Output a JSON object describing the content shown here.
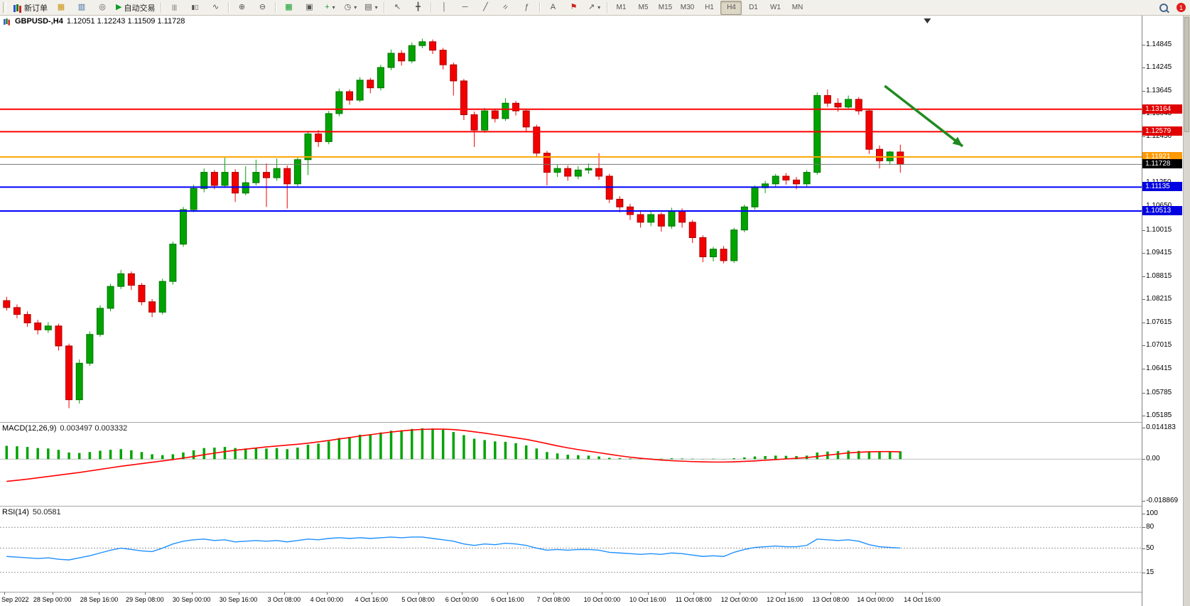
{
  "toolbar": {
    "new_order_label": "新订单",
    "auto_trading_label": "自动交易",
    "timeframes": [
      "M1",
      "M5",
      "M15",
      "M30",
      "H1",
      "H4",
      "D1",
      "W1",
      "MN"
    ],
    "active_timeframe": "H4",
    "notification_badge": "1"
  },
  "icons": {
    "new-chart": "▦",
    "profiles": "▥",
    "signals": "◎",
    "auto-play": "▶",
    "bars": "|||",
    "candles": "▮▯",
    "linechart": "∿",
    "zoom-in": "⊕",
    "zoom-out": "⊖",
    "tile": "▦",
    "cascade": "▣",
    "indicators": "+",
    "periods": "◷",
    "templates": "▤",
    "cursor": "↖",
    "crosshair": "╋",
    "vline": "│",
    "hline": "─",
    "trend": "╱",
    "channel": "=",
    "fibo": "ƒ",
    "text": "A",
    "label": "⚑",
    "arrows": "↗",
    "caret": "▾"
  },
  "colors": {
    "bull": "#00a400",
    "bull_edge": "#007200",
    "bear": "#f40000",
    "bear_edge": "#a80000",
    "macd_hist": "#00a400",
    "macd_signal": "#ff0000",
    "rsi_line": "#1e90ff",
    "level_red": "#ff0000",
    "level_orange": "#ffa500",
    "level_blue": "#0000ff"
  },
  "chart_data": {
    "main": {
      "type": "candlestick",
      "title_symbol": "GBPUSD-,H4",
      "title_ohlc": "1.12051 1.12243 1.11509 1.11728",
      "y_range": [
        1.0502,
        1.156
      ],
      "price_axis_labels": [
        "1.14845",
        "1.14245",
        "1.13645",
        "1.13045",
        "1.12450",
        "1.11850",
        "1.11250",
        "1.10650",
        "1.10015",
        "1.09415",
        "1.08815",
        "1.08215",
        "1.07615",
        "1.07015",
        "1.06415",
        "1.05785",
        "1.05185"
      ],
      "hlines": [
        {
          "price": 1.13164,
          "label": "1.13164",
          "color": "#ff0000",
          "bg": "#e00000",
          "width": 2
        },
        {
          "price": 1.12579,
          "label": "1.12579",
          "color": "#ff0000",
          "bg": "#e00000",
          "width": 2
        },
        {
          "price": 1.11921,
          "label": "1.11921",
          "color": "#ffa500",
          "bg": "#ff9900",
          "width": 2
        },
        {
          "price": 1.11728,
          "label": "1.11728",
          "color": "#777777",
          "bg": "#000000",
          "width": 1
        },
        {
          "price": 1.11135,
          "label": "1.11135",
          "color": "#0000ff",
          "bg": "#0000e0",
          "width": 2
        },
        {
          "price": 1.10513,
          "label": "1.10513",
          "color": "#0000ff",
          "bg": "#0000e0",
          "width": 2
        }
      ],
      "arrow": {
        "from_idx": 84.5,
        "from_price": 1.1377,
        "to_idx": 92,
        "to_price": 1.122,
        "color": "#1f8a1f"
      },
      "shift_marker_idx": 88.6,
      "candles": [
        [
          1.0818,
          1.0828,
          1.0792,
          1.08
        ],
        [
          1.08,
          1.0808,
          1.0772,
          1.0782
        ],
        [
          1.0782,
          1.079,
          1.075,
          1.076
        ],
        [
          1.076,
          1.0768,
          1.073,
          1.0742
        ],
        [
          1.0742,
          1.0762,
          1.0734,
          1.0752
        ],
        [
          1.0752,
          1.0758,
          1.0688,
          1.07
        ],
        [
          1.07,
          1.0706,
          1.0538,
          1.056
        ],
        [
          1.056,
          1.0665,
          1.055,
          1.0655
        ],
        [
          1.0655,
          1.0738,
          1.0648,
          1.073
        ],
        [
          1.073,
          1.0806,
          1.0724,
          1.0798
        ],
        [
          1.0798,
          1.0862,
          1.079,
          1.0855
        ],
        [
          1.0855,
          1.0898,
          1.0848,
          1.0888
        ],
        [
          1.0888,
          1.0894,
          1.0846,
          1.0858
        ],
        [
          1.0858,
          1.0864,
          1.0806,
          1.0815
        ],
        [
          1.0815,
          1.0822,
          1.0775,
          1.0788
        ],
        [
          1.0788,
          1.0875,
          1.0782,
          1.0868
        ],
        [
          1.0868,
          1.0972,
          1.086,
          1.0965
        ],
        [
          1.0965,
          1.1062,
          1.0958,
          1.1055
        ],
        [
          1.1055,
          1.112,
          1.1048,
          1.111
        ],
        [
          1.111,
          1.1162,
          1.11,
          1.1152
        ],
        [
          1.1152,
          1.1158,
          1.1108,
          1.1118
        ],
        [
          1.1118,
          1.119,
          1.1112,
          1.1152
        ],
        [
          1.1152,
          1.116,
          1.1075,
          1.1098
        ],
        [
          1.1098,
          1.1168,
          1.1092,
          1.1125
        ],
        [
          1.1125,
          1.1185,
          1.1118,
          1.1152
        ],
        [
          1.1152,
          1.1175,
          1.1062,
          1.1138
        ],
        [
          1.1138,
          1.1188,
          1.113,
          1.1162
        ],
        [
          1.1162,
          1.117,
          1.1058,
          1.1122
        ],
        [
          1.1122,
          1.1192,
          1.1116,
          1.1185
        ],
        [
          1.1185,
          1.126,
          1.1145,
          1.1252
        ],
        [
          1.1252,
          1.1262,
          1.1218,
          1.1232
        ],
        [
          1.1232,
          1.1312,
          1.1225,
          1.1305
        ],
        [
          1.1305,
          1.137,
          1.1298,
          1.1362
        ],
        [
          1.1362,
          1.1368,
          1.1328,
          1.134
        ],
        [
          1.134,
          1.14,
          1.1335,
          1.1392
        ],
        [
          1.1392,
          1.1398,
          1.1358,
          1.1372
        ],
        [
          1.1372,
          1.1432,
          1.1365,
          1.1425
        ],
        [
          1.1425,
          1.1472,
          1.1418,
          1.1462
        ],
        [
          1.1462,
          1.147,
          1.143,
          1.1442
        ],
        [
          1.1442,
          1.149,
          1.1436,
          1.1482
        ],
        [
          1.1482,
          1.15,
          1.1475,
          1.1492
        ],
        [
          1.1492,
          1.1498,
          1.146,
          1.147
        ],
        [
          1.147,
          1.1476,
          1.142,
          1.1432
        ],
        [
          1.1432,
          1.1438,
          1.1352,
          1.139
        ],
        [
          1.139,
          1.1395,
          1.1288,
          1.1302
        ],
        [
          1.1302,
          1.131,
          1.1218,
          1.1262
        ],
        [
          1.1262,
          1.132,
          1.1255,
          1.1312
        ],
        [
          1.1312,
          1.1318,
          1.1282,
          1.1292
        ],
        [
          1.1292,
          1.1345,
          1.1286,
          1.1332
        ],
        [
          1.1332,
          1.1338,
          1.13,
          1.1312
        ],
        [
          1.1312,
          1.1318,
          1.1256,
          1.127
        ],
        [
          1.127,
          1.1276,
          1.119,
          1.1202
        ],
        [
          1.1202,
          1.1208,
          1.1118,
          1.1152
        ],
        [
          1.1152,
          1.1172,
          1.114,
          1.1162
        ],
        [
          1.1162,
          1.117,
          1.113,
          1.1142
        ],
        [
          1.1142,
          1.1168,
          1.1134,
          1.1158
        ],
        [
          1.1158,
          1.1175,
          1.1148,
          1.1162
        ],
        [
          1.1162,
          1.1202,
          1.1132,
          1.1142
        ],
        [
          1.1142,
          1.1148,
          1.1072,
          1.1082
        ],
        [
          1.1082,
          1.109,
          1.1048,
          1.1062
        ],
        [
          1.1062,
          1.107,
          1.1028,
          1.1042
        ],
        [
          1.1042,
          1.105,
          1.1008,
          1.1022
        ],
        [
          1.1022,
          1.1052,
          1.1012,
          1.1042
        ],
        [
          1.1042,
          1.1048,
          1.0998,
          1.1012
        ],
        [
          1.1012,
          1.106,
          1.1005,
          1.1052
        ],
        [
          1.1052,
          1.1058,
          1.1008,
          1.1022
        ],
        [
          1.1022,
          1.1028,
          1.0968,
          1.0982
        ],
        [
          1.0982,
          1.0988,
          1.0918,
          1.0932
        ],
        [
          1.0932,
          1.0958,
          1.092,
          1.0952
        ],
        [
          1.0952,
          1.096,
          1.0915,
          1.0922
        ],
        [
          1.0922,
          1.1008,
          1.0916,
          1.1002
        ],
        [
          1.1002,
          1.1068,
          1.0996,
          1.1062
        ],
        [
          1.1062,
          1.1118,
          1.1055,
          1.1112
        ],
        [
          1.1112,
          1.113,
          1.1098,
          1.1122
        ],
        [
          1.1122,
          1.1148,
          1.1112,
          1.1142
        ],
        [
          1.1142,
          1.115,
          1.112,
          1.1132
        ],
        [
          1.1132,
          1.114,
          1.1108,
          1.1122
        ],
        [
          1.1122,
          1.1158,
          1.1115,
          1.1152
        ],
        [
          1.1152,
          1.136,
          1.1146,
          1.1352
        ],
        [
          1.1352,
          1.1368,
          1.1322,
          1.1332
        ],
        [
          1.1332,
          1.1345,
          1.131,
          1.1322
        ],
        [
          1.1322,
          1.1352,
          1.1315,
          1.1342
        ],
        [
          1.1342,
          1.1348,
          1.1302,
          1.1312
        ],
        [
          1.1312,
          1.1318,
          1.12,
          1.1212
        ],
        [
          1.1212,
          1.1222,
          1.1162,
          1.1182
        ],
        [
          1.1182,
          1.1208,
          1.1172,
          1.1205
        ],
        [
          1.1205,
          1.1224,
          1.1151,
          1.1173
        ]
      ]
    },
    "macd": {
      "type": "histogram+line",
      "title": "MACD(12,26,9)",
      "values_display": "0.003497 0.003332",
      "y_range": [
        -0.021,
        0.0164
      ],
      "axis_labels": [
        "0.014183",
        "0.00",
        "-0.018869"
      ],
      "axis_values": [
        0.014183,
        0,
        -0.018869
      ],
      "hist": [
        0.006,
        0.0058,
        0.0055,
        0.005,
        0.0048,
        0.0042,
        0.003,
        0.0028,
        0.0032,
        0.0038,
        0.0042,
        0.0045,
        0.004,
        0.0032,
        0.0022,
        0.0018,
        0.0022,
        0.003,
        0.004,
        0.005,
        0.0052,
        0.0055,
        0.005,
        0.0048,
        0.005,
        0.0048,
        0.005,
        0.0045,
        0.0052,
        0.0065,
        0.007,
        0.008,
        0.0095,
        0.01,
        0.011,
        0.0112,
        0.012,
        0.0128,
        0.013,
        0.0136,
        0.0139,
        0.0138,
        0.0132,
        0.0122,
        0.0108,
        0.0092,
        0.0086,
        0.008,
        0.0078,
        0.0072,
        0.0062,
        0.0048,
        0.0032,
        0.0026,
        0.002,
        0.0018,
        0.0016,
        0.0012,
        0.0006,
        0.0004,
        0.0003,
        0.0002,
        0.0003,
        0.0002,
        0.0004,
        0.0003,
        0.0002,
        0.0001,
        0.0002,
        0.0001,
        0.0004,
        0.0008,
        0.0012,
        0.0014,
        0.0016,
        0.0015,
        0.0014,
        0.0016,
        0.003,
        0.0034,
        0.0036,
        0.0038,
        0.0037,
        0.0034,
        0.0033,
        0.0034,
        0.0035
      ],
      "signal": [
        -0.01,
        -0.0095,
        -0.009,
        -0.0084,
        -0.0078,
        -0.0072,
        -0.0066,
        -0.006,
        -0.0053,
        -0.0046,
        -0.0039,
        -0.0032,
        -0.0026,
        -0.002,
        -0.0014,
        -0.0008,
        -0.0002,
        0.0005,
        0.0012,
        0.002,
        0.0027,
        0.0034,
        0.004,
        0.0045,
        0.005,
        0.0055,
        0.0059,
        0.0063,
        0.0067,
        0.0072,
        0.0078,
        0.0084,
        0.0091,
        0.0097,
        0.0104,
        0.011,
        0.0116,
        0.0122,
        0.0127,
        0.0131,
        0.0134,
        0.0135,
        0.0135,
        0.0133,
        0.0129,
        0.0123,
        0.0117,
        0.011,
        0.0103,
        0.0096,
        0.0089,
        0.008,
        0.007,
        0.006,
        0.0051,
        0.0043,
        0.0036,
        0.0029,
        0.0022,
        0.0015,
        0.0009,
        0.0004,
        0.0,
        -0.0004,
        -0.0007,
        -0.0009,
        -0.0011,
        -0.0012,
        -0.0013,
        -0.0013,
        -0.0012,
        -0.001,
        -0.0008,
        -0.0005,
        -0.0002,
        0.0001,
        0.0004,
        0.0007,
        0.0012,
        0.0018,
        0.0023,
        0.0028,
        0.0031,
        0.0033,
        0.0034,
        0.0034,
        0.0033
      ]
    },
    "rsi": {
      "type": "line",
      "title": "RSI(14)",
      "value_display": "50.0581",
      "y_range": [
        -13,
        110
      ],
      "levels": [
        80,
        50,
        15
      ],
      "axis_labels": [
        "100",
        "80",
        "50",
        "15"
      ],
      "axis_values": [
        100,
        80,
        50,
        15
      ],
      "values": [
        38,
        37,
        36,
        35,
        36,
        34,
        33,
        36,
        39,
        43,
        47,
        50,
        48,
        46,
        45,
        50,
        56,
        60,
        62,
        63,
        61,
        62,
        59,
        60,
        61,
        60,
        61,
        59,
        61,
        63,
        62,
        64,
        65,
        64,
        65,
        64,
        65,
        66,
        65,
        66,
        66,
        64,
        62,
        60,
        56,
        54,
        56,
        55,
        57,
        56,
        54,
        50,
        47,
        48,
        47,
        48,
        48,
        47,
        44,
        43,
        42,
        41,
        42,
        41,
        43,
        42,
        40,
        38,
        39,
        38,
        44,
        48,
        51,
        52,
        53,
        52,
        52,
        54,
        63,
        62,
        61,
        62,
        60,
        55,
        52,
        51,
        50.06
      ]
    },
    "time_axis": {
      "labels": [
        "Sep 2022",
        "28 Sep 00:00",
        "28 Sep 16:00",
        "29 Sep 08:00",
        "30 Sep 00:00",
        "30 Sep 16:00",
        "3 Oct 08:00",
        "4 Oct 00:00",
        "4 Oct 16:00",
        "5 Oct 08:00",
        "6 Oct 00:00",
        "6 Oct 16:00",
        "7 Oct 08:00",
        "10 Oct 00:00",
        "10 Oct 16:00",
        "11 Oct 08:00",
        "12 Oct 00:00",
        "12 Oct 16:00",
        "13 Oct 08:00",
        "14 Oct 00:00",
        "14 Oct 16:00"
      ],
      "indices": [
        -0.2,
        4.4,
        8.9,
        13.3,
        17.8,
        22.3,
        26.7,
        30.8,
        35.1,
        39.6,
        43.8,
        48.2,
        52.6,
        57.3,
        61.7,
        66.1,
        70.5,
        74.9,
        79.3,
        83.6,
        88.1
      ]
    }
  }
}
